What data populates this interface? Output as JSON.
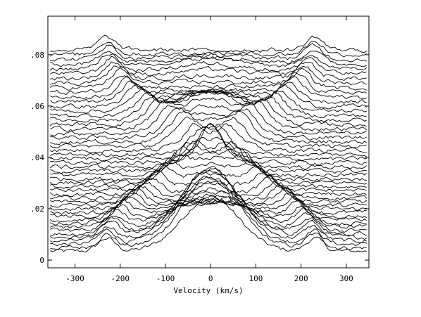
{
  "chart_data": {
    "type": "line",
    "title": "",
    "xlabel": "Velocity (km/s)",
    "ylabel": "",
    "xlim": [
      -360,
      350
    ],
    "ylim": [
      -0.003,
      0.095
    ],
    "x_ticks": [
      -300,
      -200,
      -100,
      0,
      100,
      200,
      300
    ],
    "x_tick_labels": [
      "-300",
      "-200",
      "-100",
      "0",
      "100",
      "200",
      "300"
    ],
    "y_ticks": [
      0,
      0.02,
      0.04,
      0.06,
      0.08
    ],
    "y_tick_labels": [
      "0",
      ".02",
      ".04",
      ".06",
      ".08"
    ],
    "grid": false,
    "legend": "none",
    "line_color": "#000000",
    "x_range": [
      -355,
      348
    ],
    "profile_count": 50,
    "baseline_start": 0.0035,
    "baseline_step": 0.0016,
    "line_profile": {
      "center_velocity": 0,
      "sigma": 42,
      "emission_bump": [
        0.021,
        0.027,
        0.029,
        0.028,
        0.025,
        0.021,
        0.017,
        0.013,
        0.009,
        0.006,
        0.0035,
        0.0012,
        -0.0006,
        -0.0018,
        -0.0025,
        -0.0015,
        0.0008,
        0.003,
        0.005,
        0.006,
        0.0058,
        0.005,
        0.0035,
        0.002,
        0.001,
        0.0006,
        0.0012,
        0.002,
        0.0035,
        0.005,
        0.006,
        0.007,
        0.0085,
        0.009,
        0.008,
        0.006,
        0.0045,
        0.003,
        0.0015,
        0.0005,
        -0.0002,
        0.0003,
        0.0012,
        0.002,
        0.0028,
        0.0032,
        0.0025,
        0.0012,
        0.0002,
        -0.0002
      ],
      "track_amplitude": 0.01,
      "track_max_velocity": 230,
      "track_width": 26,
      "noise": 0.0007
    }
  }
}
